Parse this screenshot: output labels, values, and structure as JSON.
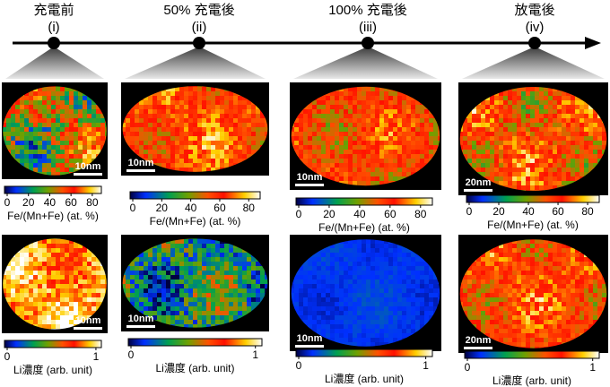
{
  "timeline": {
    "stages": [
      {
        "title": "充電前",
        "numeral": "(i)",
        "fe_scale_bar": "10nm",
        "li_scale_bar": "10nm"
      },
      {
        "title": "50% 充電後",
        "numeral": "(ii)",
        "fe_scale_bar": "10nm",
        "li_scale_bar": "10nm"
      },
      {
        "title": "100% 充電後",
        "numeral": "(iii)",
        "fe_scale_bar": "10nm",
        "li_scale_bar": "10nm"
      },
      {
        "title": "放電後",
        "numeral": "(iv)",
        "fe_scale_bar": "20nm",
        "li_scale_bar": "20nm"
      }
    ]
  },
  "fe_colorbar": {
    "ticks": [
      0,
      20,
      40,
      60,
      80
    ],
    "label": "Fe/(Mn+Fe) (at. %)"
  },
  "li_colorbar": {
    "ticks": [
      0,
      1
    ],
    "label": "Li濃度 (arb. unit)"
  }
}
